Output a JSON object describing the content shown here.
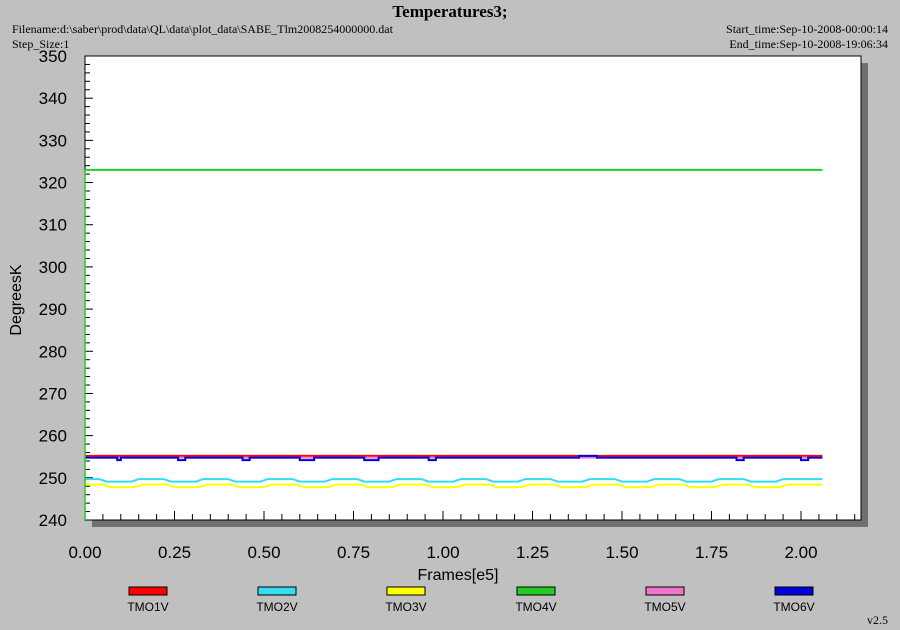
{
  "header": {
    "title": "Temperatures3;",
    "filename": "Filename:d:\\saber\\prod\\data\\QL\\data\\plot_data\\SABE_Tlm2008254000000.dat",
    "step_size": "Step_Size:1",
    "start_time": "Start_time:Sep-10-2008-00:00:14",
    "end_time": "End_time:Sep-10-2008-19:06:34"
  },
  "version": "v2.5",
  "chart_data": {
    "type": "line",
    "xlabel": "Frames[e5]",
    "ylabel": "DegreesK",
    "xlim": [
      0,
      2.17
    ],
    "ylim": [
      240,
      350
    ],
    "x_ticks": [
      "0.00",
      "0.25",
      "0.50",
      "0.75",
      "1.00",
      "1.25",
      "1.50",
      "1.75",
      "2.00"
    ],
    "y_ticks": [
      "240",
      "250",
      "260",
      "270",
      "280",
      "290",
      "300",
      "310",
      "320",
      "330",
      "340",
      "350"
    ],
    "legend_position": "bottom",
    "series": [
      {
        "name": "TMO1V",
        "color": "#ff0000",
        "x": [
          0,
          2.06
        ],
        "y": [
          255.2,
          255.2
        ]
      },
      {
        "name": "TMO2V",
        "color": "#33ddee",
        "x": [
          0,
          0.04,
          0.06,
          0.13,
          0.15,
          0.22,
          0.24,
          0.31,
          0.33,
          0.4,
          0.42,
          0.49,
          0.51,
          0.58,
          0.6,
          0.67,
          0.69,
          0.76,
          0.78,
          0.85,
          0.87,
          0.94,
          0.96,
          1.03,
          1.05,
          1.12,
          1.14,
          1.21,
          1.23,
          1.3,
          1.32,
          1.39,
          1.41,
          1.48,
          1.5,
          1.57,
          1.59,
          1.66,
          1.68,
          1.75,
          1.77,
          1.84,
          1.86,
          1.93,
          1.95,
          2.02,
          2.06
        ],
        "y": [
          249.7,
          249.7,
          249.1,
          249.1,
          249.7,
          249.7,
          249.1,
          249.1,
          249.7,
          249.7,
          249.1,
          249.1,
          249.7,
          249.7,
          249.1,
          249.1,
          249.7,
          249.7,
          249.1,
          249.1,
          249.7,
          249.7,
          249.1,
          249.1,
          249.7,
          249.7,
          249.1,
          249.1,
          249.7,
          249.7,
          249.1,
          249.1,
          249.7,
          249.7,
          249.1,
          249.1,
          249.7,
          249.7,
          249.1,
          249.1,
          249.7,
          249.7,
          249.1,
          249.1,
          249.7,
          249.7,
          249.7
        ]
      },
      {
        "name": "TMO3V",
        "color": "#ffff00",
        "x": [
          0,
          0.05,
          0.07,
          0.14,
          0.16,
          0.23,
          0.25,
          0.32,
          0.34,
          0.41,
          0.43,
          0.5,
          0.52,
          0.59,
          0.61,
          0.68,
          0.7,
          0.77,
          0.79,
          0.86,
          0.88,
          0.95,
          0.97,
          1.04,
          1.06,
          1.13,
          1.15,
          1.22,
          1.24,
          1.31,
          1.33,
          1.4,
          1.42,
          1.49,
          1.51,
          1.58,
          1.6,
          1.67,
          1.69,
          1.76,
          1.78,
          1.85,
          1.87,
          1.94,
          1.96,
          2.03,
          2.06
        ],
        "y": [
          248.4,
          248.4,
          247.8,
          247.8,
          248.4,
          248.4,
          247.8,
          247.8,
          248.4,
          248.4,
          247.8,
          247.8,
          248.4,
          248.4,
          247.8,
          247.8,
          248.4,
          248.4,
          247.8,
          247.8,
          248.4,
          248.4,
          247.8,
          247.8,
          248.4,
          248.4,
          247.8,
          247.8,
          248.4,
          248.4,
          247.8,
          247.8,
          248.4,
          248.4,
          247.8,
          247.8,
          248.4,
          248.4,
          247.8,
          247.8,
          248.4,
          248.4,
          247.8,
          247.8,
          248.4,
          248.4,
          248.4
        ]
      },
      {
        "name": "TMO4V",
        "color": "#22cc22",
        "x": [
          0,
          2.06
        ],
        "y": [
          323.0,
          323.0
        ]
      },
      {
        "name": "TMO5V",
        "color": "#ee77cc",
        "x": [
          0,
          2.06
        ],
        "y": [
          254.8,
          254.8
        ]
      },
      {
        "name": "TMO6V",
        "color": "#0000dd",
        "x": [
          0,
          0.09,
          0.09,
          0.1,
          0.1,
          0.26,
          0.26,
          0.28,
          0.28,
          0.44,
          0.44,
          0.46,
          0.46,
          0.6,
          0.6,
          0.64,
          0.64,
          0.78,
          0.78,
          0.82,
          0.82,
          0.96,
          0.96,
          0.98,
          0.98,
          1.38,
          1.38,
          1.43,
          1.43,
          1.82,
          1.82,
          1.84,
          1.84,
          2.0,
          2.0,
          2.02,
          2.02,
          2.06
        ],
        "y": [
          254.8,
          254.8,
          254.2,
          254.2,
          254.8,
          254.8,
          254.2,
          254.2,
          254.8,
          254.8,
          254.2,
          254.2,
          254.8,
          254.8,
          254.2,
          254.2,
          254.8,
          254.8,
          254.2,
          254.2,
          254.8,
          254.8,
          254.2,
          254.2,
          254.8,
          254.8,
          255.2,
          255.2,
          254.8,
          254.8,
          254.2,
          254.2,
          254.8,
          254.8,
          254.2,
          254.2,
          254.8,
          254.8
        ]
      }
    ]
  }
}
